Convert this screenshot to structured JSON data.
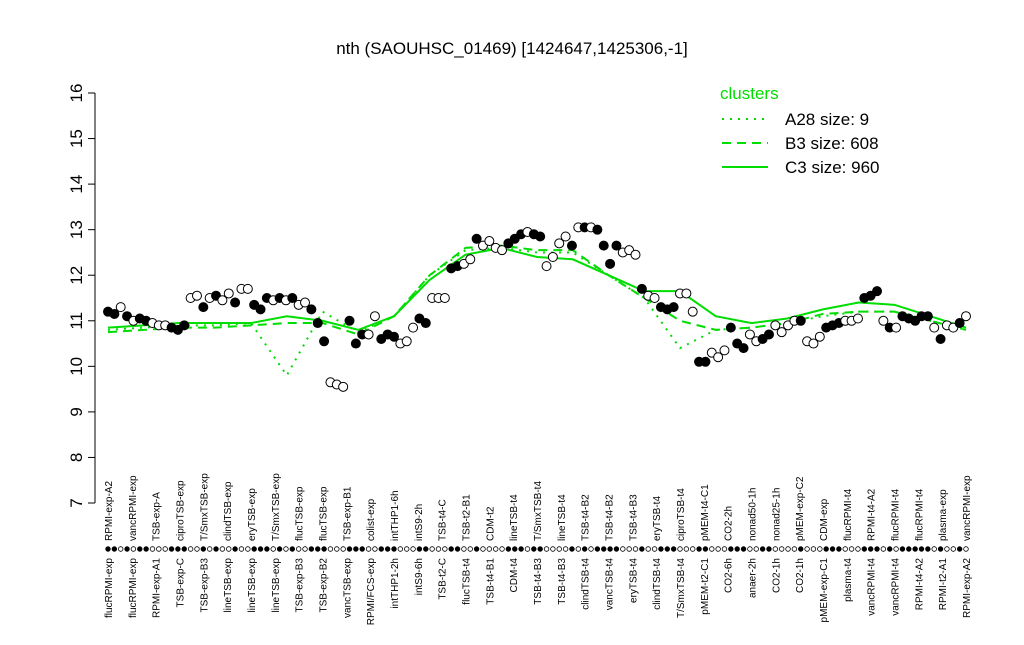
{
  "chart_data": {
    "type": "scatter",
    "title": "nth (SAOUHSC_01469) [1424647,1425306,-1]",
    "xlabel": "",
    "ylabel": "",
    "ylim": [
      7,
      16
    ],
    "yticks": [
      7,
      8,
      9,
      10,
      11,
      12,
      13,
      14,
      15,
      16
    ],
    "grid": false,
    "legend": {
      "title": "clusters",
      "placement": "top-right",
      "entries": [
        {
          "name": "A28 size: 9",
          "style": "dotted"
        },
        {
          "name": "B3 size: 608",
          "style": "dashed"
        },
        {
          "name": "C3 size: 960",
          "style": "solid"
        }
      ]
    },
    "colors": {
      "lines": "#00dd00",
      "legend_title": "#00dd00",
      "filled": "#000000",
      "open": "#ffffff"
    },
    "points": [
      [
        11.2,
        1
      ],
      [
        11.15,
        1
      ],
      [
        11.3,
        0
      ],
      [
        11.1,
        1
      ],
      [
        11.0,
        0
      ],
      [
        11.05,
        1
      ],
      [
        11.0,
        1
      ],
      [
        10.95,
        0
      ],
      [
        10.9,
        0
      ],
      [
        10.9,
        0
      ],
      [
        10.85,
        1
      ],
      [
        10.8,
        1
      ],
      [
        10.9,
        1
      ],
      [
        11.5,
        0
      ],
      [
        11.55,
        0
      ],
      [
        11.3,
        1
      ],
      [
        11.5,
        0
      ],
      [
        11.55,
        1
      ],
      [
        11.45,
        0
      ],
      [
        11.6,
        0
      ],
      [
        11.4,
        1
      ],
      [
        11.7,
        0
      ],
      [
        11.7,
        0
      ],
      [
        11.35,
        1
      ],
      [
        11.25,
        1
      ],
      [
        11.5,
        1
      ],
      [
        11.45,
        0
      ],
      [
        11.5,
        1
      ],
      [
        11.45,
        0
      ],
      [
        11.5,
        1
      ],
      [
        11.35,
        0
      ],
      [
        11.4,
        0
      ],
      [
        11.25,
        1
      ],
      [
        10.95,
        1
      ],
      [
        10.55,
        1
      ],
      [
        9.65,
        0
      ],
      [
        9.6,
        0
      ],
      [
        9.55,
        0
      ],
      [
        11.0,
        1
      ],
      [
        10.5,
        1
      ],
      [
        10.7,
        1
      ],
      [
        10.7,
        0
      ],
      [
        11.1,
        0
      ],
      [
        10.6,
        1
      ],
      [
        10.7,
        1
      ],
      [
        10.65,
        1
      ],
      [
        10.5,
        0
      ],
      [
        10.55,
        0
      ],
      [
        10.85,
        0
      ],
      [
        11.05,
        1
      ],
      [
        10.95,
        1
      ],
      [
        11.5,
        0
      ],
      [
        11.5,
        0
      ],
      [
        11.5,
        0
      ],
      [
        12.15,
        1
      ],
      [
        12.2,
        1
      ],
      [
        12.25,
        0
      ],
      [
        12.35,
        0
      ],
      [
        12.8,
        1
      ],
      [
        12.65,
        0
      ],
      [
        12.75,
        0
      ],
      [
        12.6,
        0
      ],
      [
        12.55,
        0
      ],
      [
        12.7,
        1
      ],
      [
        12.8,
        1
      ],
      [
        12.9,
        1
      ],
      [
        12.95,
        0
      ],
      [
        12.9,
        1
      ],
      [
        12.85,
        1
      ],
      [
        12.2,
        0
      ],
      [
        12.4,
        0
      ],
      [
        12.7,
        0
      ],
      [
        12.85,
        0
      ],
      [
        12.65,
        1
      ],
      [
        13.05,
        0
      ],
      [
        13.05,
        1
      ],
      [
        13.05,
        0
      ],
      [
        13.0,
        1
      ],
      [
        12.65,
        1
      ],
      [
        12.25,
        1
      ],
      [
        12.65,
        1
      ],
      [
        12.5,
        0
      ],
      [
        12.55,
        0
      ],
      [
        12.45,
        0
      ],
      [
        11.7,
        1
      ],
      [
        11.55,
        0
      ],
      [
        11.5,
        0
      ],
      [
        11.3,
        1
      ],
      [
        11.25,
        1
      ],
      [
        11.3,
        1
      ],
      [
        11.6,
        0
      ],
      [
        11.6,
        0
      ],
      [
        11.2,
        0
      ],
      [
        10.1,
        1
      ],
      [
        10.1,
        1
      ],
      [
        10.3,
        0
      ],
      [
        10.2,
        0
      ],
      [
        10.35,
        0
      ],
      [
        10.85,
        1
      ],
      [
        10.5,
        1
      ],
      [
        10.4,
        1
      ],
      [
        10.7,
        0
      ],
      [
        10.55,
        0
      ],
      [
        10.6,
        1
      ],
      [
        10.7,
        1
      ],
      [
        10.9,
        0
      ],
      [
        10.75,
        0
      ],
      [
        10.9,
        0
      ],
      [
        11.0,
        0
      ],
      [
        11.0,
        1
      ],
      [
        10.55,
        0
      ],
      [
        10.5,
        0
      ],
      [
        10.65,
        0
      ],
      [
        10.85,
        1
      ],
      [
        10.9,
        1
      ],
      [
        10.95,
        1
      ],
      [
        11.0,
        0
      ],
      [
        11.0,
        0
      ],
      [
        11.05,
        0
      ],
      [
        11.5,
        1
      ],
      [
        11.55,
        1
      ],
      [
        11.65,
        1
      ],
      [
        11.0,
        0
      ],
      [
        10.85,
        1
      ],
      [
        10.85,
        0
      ],
      [
        11.1,
        1
      ],
      [
        11.05,
        1
      ],
      [
        11.0,
        1
      ],
      [
        11.1,
        1
      ],
      [
        11.1,
        1
      ],
      [
        10.85,
        0
      ],
      [
        10.6,
        1
      ],
      [
        10.9,
        0
      ],
      [
        10.85,
        0
      ],
      [
        10.95,
        1
      ],
      [
        11.1,
        0
      ]
    ],
    "series": [
      {
        "name": "C3 size: 960",
        "style": "solid",
        "values": [
          10.85,
          10.9,
          10.95,
          10.95,
          10.95,
          11.1,
          11.0,
          10.8,
          11.1,
          11.9,
          12.45,
          12.6,
          12.4,
          12.35,
          12.0,
          11.65,
          11.65,
          11.1,
          10.95,
          11.05,
          11.25,
          11.4,
          11.35,
          11.1,
          10.85
        ]
      },
      {
        "name": "B3 size: 608",
        "style": "dashed",
        "values": [
          10.75,
          10.8,
          10.85,
          10.85,
          10.9,
          10.95,
          10.95,
          10.7,
          11.1,
          12.0,
          12.6,
          12.65,
          12.55,
          12.55,
          12.0,
          11.5,
          11.0,
          10.8,
          10.85,
          10.95,
          11.15,
          11.2,
          11.2,
          11.0,
          10.8
        ]
      },
      {
        "name": "A28 size: 9",
        "style": "dotted",
        "values": [
          10.8,
          10.85,
          10.9,
          10.9,
          10.95,
          9.8,
          11.2,
          10.75,
          11.1,
          12.0,
          12.55,
          12.6,
          12.5,
          12.5,
          12.0,
          11.5,
          10.4,
          10.8,
          10.85,
          10.95,
          11.1,
          11.2,
          11.2,
          11.0,
          10.8
        ]
      }
    ],
    "top_labels": [
      "RPMI-exp-A2",
      "vancRPMI-exp",
      "TSB-exp-A",
      "ciproTSB-exp",
      "T/SmxTSB-exp",
      "clindTSB-exp",
      "eryTSB-exp",
      "T/SmxTSB-exp",
      "flucTSB-exp",
      "flucTSB-exp",
      "TSB-exp-B1",
      "colist-exp",
      "intTHP1-6h",
      "intS9-2h",
      "TSB-t4-C",
      "TSB-t2-B1",
      "CDM-t2",
      "lineTSB-t4",
      "T/SmxTSB-t4",
      "lineTSB-t4",
      "TSB-t4-B2",
      "TSB-t4-B2",
      "TSB-t4-B3",
      "eryTSB-t4",
      "ciproTSB-t4",
      "pMEM-t4-C1",
      "CO2-2h",
      "nonad50-1h",
      "nonad25-1h",
      "pMEM-exp-C2",
      "CDM-exp",
      "flucRPMI-t4",
      "RPMI-t4-A2",
      "flucRPMI-t4",
      "flucRPMI-t4",
      "plasma-exp",
      "vancRPMI-exp"
    ],
    "bottom_labels": [
      "flucRPMI-exp",
      "flucRPMI-exp",
      "RPMI-exp-A1",
      "TSB-exp-C",
      "TSB-exp-B3",
      "lineTSB-exp",
      "lineTSB-exp",
      "lineTSB-exp",
      "TSB-exp-B3",
      "TSB-exp-B2",
      "vancTSB-exp",
      "RPMI/FCS-exp",
      "intTHP1-2h",
      "intS9-6h",
      "TSB-t2-C",
      "flucTSB-t4",
      "TSB-t4-B1",
      "CDM-t4",
      "TSB-t4-B3",
      "TSB-t4-B3",
      "clindTSB-t4",
      "vancTSB-t4",
      "eryTSB-t4",
      "clindTSB-t4",
      "T/SmxTSB-t4",
      "pMEM-t2-C1",
      "CO2-6h",
      "anaer-2h",
      "CO2-1h",
      "CO2-1h",
      "pMEM-exp-C1",
      "plasma-t4",
      "vancRPMI-t4",
      "vancRPMI-t4",
      "RPMI-t4-A2",
      "RPMI-t2-A1",
      "RPMI-exp-A2"
    ]
  }
}
